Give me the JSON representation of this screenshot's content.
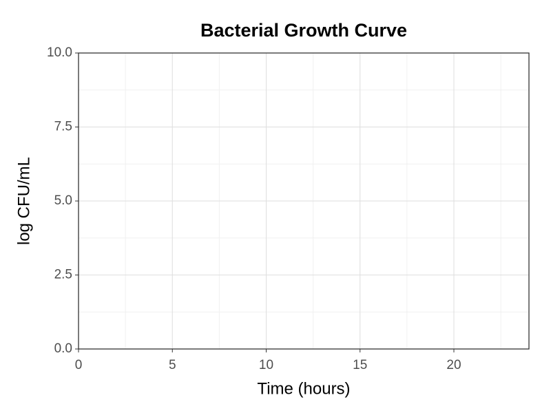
{
  "chart_data": {
    "type": "line",
    "title": "Bacterial Growth Curve",
    "x_label": "Time (hours)",
    "y_label": "log CFU/mL",
    "xlim": [
      0,
      24
    ],
    "xticks": [
      0,
      5,
      10,
      15,
      20
    ],
    "ylim": [
      0,
      10
    ],
    "yticks": [
      {
        "value": 0,
        "label": "0.0"
      },
      2.5,
      {
        "value": 5,
        "label": "5.0"
      },
      7.5,
      {
        "value": 10,
        "label": "10.0"
      }
    ],
    "grid": true
  }
}
